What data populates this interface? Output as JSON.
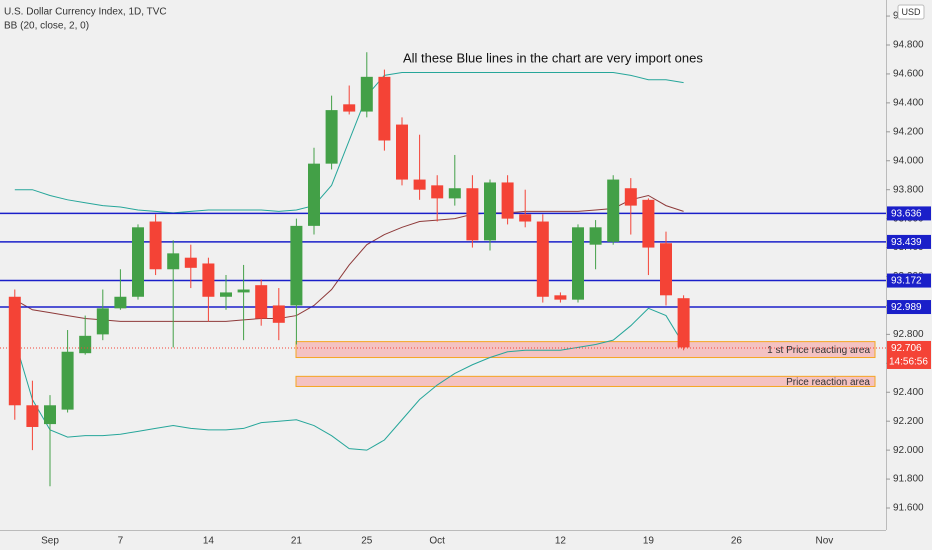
{
  "chart_data": {
    "type": "candlestick",
    "title": "U.S. Dollar Currency Index, 1D, TVC",
    "subtitle": "BB (20, close, 2, 0)",
    "annotation": "All these Blue lines in the chart are very import ones",
    "currency": "USD",
    "categories": [
      null,
      null,
      "Sep",
      null,
      null,
      null,
      "7",
      null,
      null,
      null,
      null,
      "14",
      null,
      null,
      null,
      null,
      "21",
      null,
      null,
      null,
      "25",
      null,
      null,
      null,
      "Oct",
      null,
      null,
      null,
      null,
      null,
      null,
      "12",
      null,
      null,
      null,
      null,
      "19",
      null,
      null,
      null,
      null,
      "26",
      null,
      null,
      null,
      null,
      "Nov"
    ],
    "open": [
      93.06,
      92.31,
      92.18,
      92.28,
      92.67,
      92.8,
      92.98,
      93.06,
      93.58,
      93.25,
      93.33,
      93.29,
      93.06,
      93.09,
      93.14,
      93.0,
      93.0,
      93.55,
      93.98,
      94.39,
      94.34,
      94.58,
      94.25,
      93.87,
      93.83,
      93.74,
      93.81,
      93.45,
      93.85,
      93.63,
      93.58,
      93.07,
      93.04,
      93.42,
      93.44,
      93.81,
      93.73,
      93.43,
      93.05,
      null,
      null,
      null,
      null,
      null,
      null,
      null,
      null
    ],
    "high": [
      93.11,
      92.48,
      92.38,
      92.83,
      92.93,
      93.11,
      93.25,
      93.56,
      93.63,
      93.45,
      93.42,
      93.33,
      93.21,
      93.28,
      93.18,
      93.12,
      93.6,
      94.09,
      94.45,
      94.52,
      94.75,
      94.63,
      94.3,
      94.18,
      93.9,
      94.04,
      93.9,
      93.87,
      93.9,
      93.8,
      93.63,
      93.09,
      93.56,
      93.59,
      93.9,
      93.88,
      93.74,
      93.51,
      93.07,
      null,
      null,
      null,
      null,
      null,
      null,
      null,
      null
    ],
    "low": [
      92.21,
      92.0,
      91.75,
      92.26,
      92.66,
      92.76,
      92.97,
      93.04,
      93.21,
      92.71,
      93.12,
      92.89,
      92.97,
      92.76,
      92.86,
      92.76,
      92.73,
      93.49,
      93.94,
      94.32,
      94.3,
      94.07,
      93.83,
      93.73,
      93.58,
      93.69,
      93.4,
      93.38,
      93.56,
      93.54,
      93.02,
      93.02,
      93.02,
      93.25,
      93.42,
      93.49,
      93.21,
      93.0,
      92.69,
      null,
      null,
      null,
      null,
      null,
      null,
      null,
      null
    ],
    "close": [
      92.31,
      92.16,
      92.31,
      92.68,
      92.79,
      92.98,
      93.06,
      93.54,
      93.25,
      93.36,
      93.26,
      93.06,
      93.09,
      93.11,
      92.91,
      92.88,
      93.55,
      93.98,
      94.35,
      94.34,
      94.58,
      94.14,
      93.87,
      93.8,
      93.74,
      93.81,
      93.45,
      93.85,
      93.6,
      93.58,
      93.06,
      93.04,
      93.54,
      93.54,
      93.87,
      93.69,
      93.4,
      93.07,
      92.71,
      null,
      null,
      null,
      null,
      null,
      null,
      null,
      null
    ],
    "up_color": "#43a047",
    "down_color": "#f44336",
    "bands": [
      {
        "color": "#26a69a",
        "values": [
          93.8,
          93.8,
          93.76,
          93.73,
          93.71,
          93.69,
          93.68,
          93.66,
          93.65,
          93.64,
          93.65,
          93.66,
          93.66,
          93.66,
          93.66,
          93.65,
          93.66,
          93.69,
          93.83,
          94.14,
          94.45,
          94.59,
          94.61,
          94.61,
          94.61,
          94.61,
          94.61,
          94.61,
          94.61,
          94.61,
          94.61,
          94.61,
          94.61,
          94.61,
          94.61,
          94.59,
          94.56,
          94.56,
          94.54,
          null,
          null,
          null,
          null,
          null,
          null,
          null,
          null
        ]
      },
      {
        "color": "#8e3a3a",
        "values": [
          93.04,
          92.97,
          92.95,
          92.93,
          92.91,
          92.9,
          92.89,
          92.89,
          92.89,
          92.89,
          92.89,
          92.89,
          92.89,
          92.9,
          92.91,
          92.91,
          92.93,
          93.0,
          93.11,
          93.28,
          93.42,
          93.49,
          93.54,
          93.58,
          93.59,
          93.6,
          93.63,
          93.64,
          93.64,
          93.65,
          93.65,
          93.65,
          93.65,
          93.66,
          93.67,
          93.73,
          93.76,
          93.69,
          93.65,
          null,
          null,
          null,
          null,
          null,
          null,
          null,
          null
        ]
      },
      {
        "color": "#26a69a",
        "values": [
          92.76,
          92.35,
          92.14,
          92.09,
          92.1,
          92.1,
          92.11,
          92.13,
          92.15,
          92.17,
          92.15,
          92.14,
          92.14,
          92.15,
          92.19,
          92.2,
          92.21,
          92.17,
          92.1,
          92.01,
          92.0,
          92.07,
          92.21,
          92.35,
          92.45,
          92.53,
          92.59,
          92.64,
          92.68,
          92.69,
          92.69,
          92.69,
          92.71,
          92.73,
          92.76,
          92.86,
          92.98,
          92.93,
          92.73,
          null,
          null,
          null,
          null,
          null,
          null,
          null,
          null
        ]
      }
    ],
    "levels": [
      {
        "value": 93.636,
        "label": "93.636"
      },
      {
        "value": 93.439,
        "label": "93.439"
      },
      {
        "value": 93.172,
        "label": "93.172"
      },
      {
        "value": 92.989,
        "label": "92.989"
      }
    ],
    "level_color": "#1a1fc9",
    "zones": [
      {
        "label": "1 st Price reacting area",
        "top": 92.75,
        "bottom": 92.64
      },
      {
        "label": "Price reaction area",
        "top": 92.51,
        "bottom": 92.44
      }
    ],
    "last_price": {
      "value": 92.706,
      "label": "92.706"
    },
    "countdown": "14:56:56",
    "ylim": [
      91.448,
      95.111
    ],
    "yticks": [
      {
        "value": 91.6,
        "label": "91.600"
      },
      {
        "value": 91.8,
        "label": "91.800"
      },
      {
        "value": 92.0,
        "label": "92.000"
      },
      {
        "value": 92.2,
        "label": "92.200"
      },
      {
        "value": 92.4,
        "label": "92.400"
      },
      {
        "value": 92.6,
        "label": "92.600"
      },
      {
        "value": 92.8,
        "label": "92.800"
      },
      {
        "value": 93.0,
        "label": "93.000"
      },
      {
        "value": 93.2,
        "label": "93.200"
      },
      {
        "value": 93.4,
        "label": "93.400"
      },
      {
        "value": 93.6,
        "label": "93.600"
      },
      {
        "value": 93.8,
        "label": "93.800"
      },
      {
        "value": 94.0,
        "label": "94.000"
      },
      {
        "value": 94.2,
        "label": "94.200"
      },
      {
        "value": 94.4,
        "label": "94.400"
      },
      {
        "value": 94.6,
        "label": "94.600"
      },
      {
        "value": 94.8,
        "label": "94.800"
      },
      {
        "value": 95.0,
        "label": "95.000"
      }
    ]
  }
}
